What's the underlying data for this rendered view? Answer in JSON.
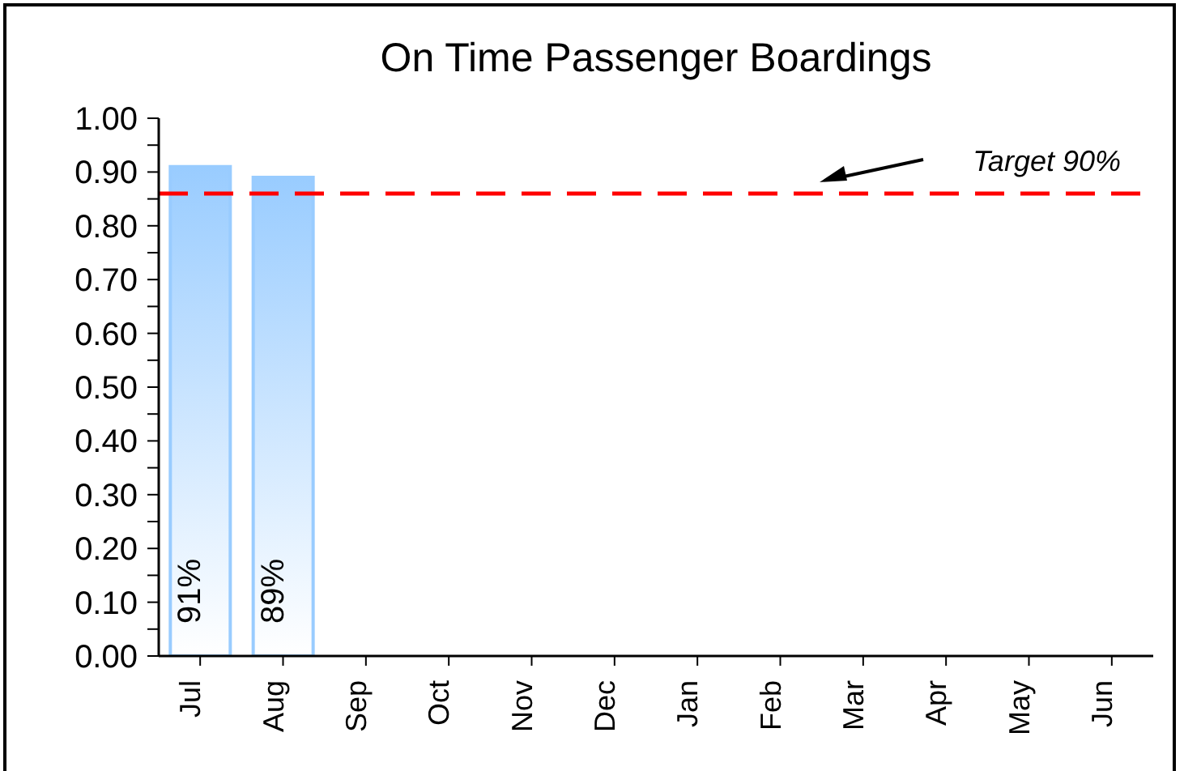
{
  "chart_data": {
    "type": "bar",
    "title": "On Time Passenger Boardings",
    "categories": [
      "Jul",
      "Aug",
      "Sep",
      "Oct",
      "Nov",
      "Dec",
      "Jan",
      "Feb",
      "Mar",
      "Apr",
      "May",
      "Jun"
    ],
    "values": [
      0.91,
      0.89,
      null,
      null,
      null,
      null,
      null,
      null,
      null,
      null,
      null,
      null
    ],
    "value_labels": [
      "91%",
      "89%",
      null,
      null,
      null,
      null,
      null,
      null,
      null,
      null,
      null,
      null
    ],
    "color": "#99ccff",
    "ylim": [
      0,
      1
    ],
    "yticks": [
      {
        "value": 0,
        "label": "0.00"
      },
      {
        "value": 0.05,
        "label": null
      },
      {
        "value": 0.1,
        "label": "0.10"
      },
      {
        "value": 0.15,
        "label": null
      },
      {
        "value": 0.2,
        "label": "0.20"
      },
      {
        "value": 0.25,
        "label": null
      },
      {
        "value": 0.3,
        "label": "0.30"
      },
      {
        "value": 0.35,
        "label": null
      },
      {
        "value": 0.4,
        "label": "0.40"
      },
      {
        "value": 0.45,
        "label": null
      },
      {
        "value": 0.5,
        "label": "0.50"
      },
      {
        "value": 0.55,
        "label": null
      },
      {
        "value": 0.6,
        "label": "0.60"
      },
      {
        "value": 0.65,
        "label": null
      },
      {
        "value": 0.7,
        "label": "0.70"
      },
      {
        "value": 0.75,
        "label": null
      },
      {
        "value": 0.8,
        "label": "0.80"
      },
      {
        "value": 0.85,
        "label": null
      },
      {
        "value": 0.9,
        "label": "0.90"
      },
      {
        "value": 0.95,
        "label": null
      },
      {
        "value": 1,
        "label": "1.00"
      }
    ],
    "ref_lines": [
      {
        "axis": "y",
        "value": 0.86,
        "label": "Target 90%",
        "color": "#ff0000",
        "line_style": "dashed"
      }
    ],
    "data_labels": false
  }
}
